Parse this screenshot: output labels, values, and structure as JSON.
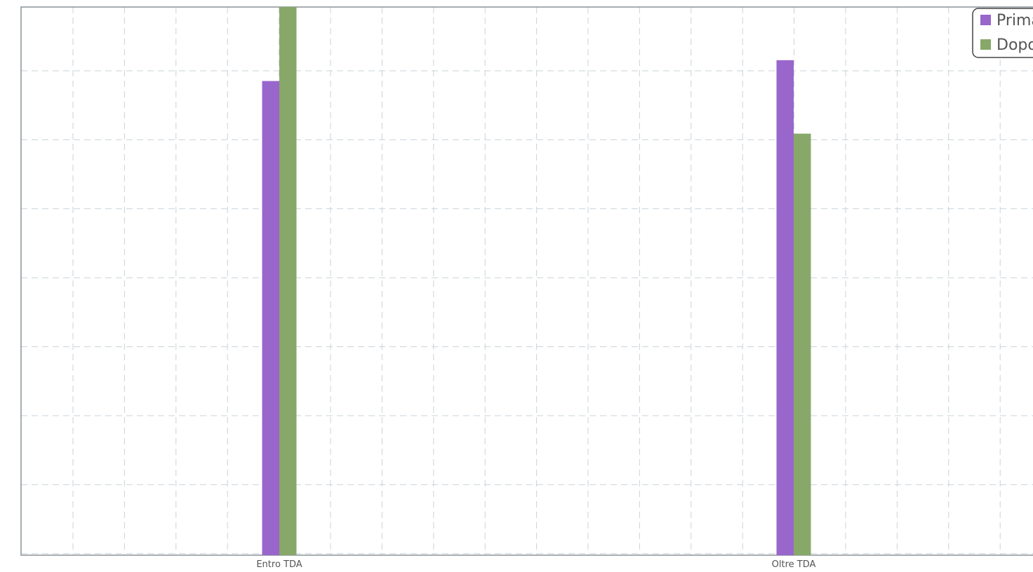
{
  "chart_data": {
    "type": "bar",
    "categories": [
      "Entro TDA",
      "Oltre TDA"
    ],
    "series": [
      {
        "name": "Prima",
        "color": "#9966cc",
        "values": [
          86.5,
          90.3
        ]
      },
      {
        "name": "Dopo",
        "color": "#88a86a",
        "values": [
          100,
          76.9
        ]
      }
    ],
    "ylim": [
      0,
      100
    ],
    "grid": true,
    "legend": "top-right",
    "title": "",
    "xlabel": "",
    "ylabel": ""
  }
}
